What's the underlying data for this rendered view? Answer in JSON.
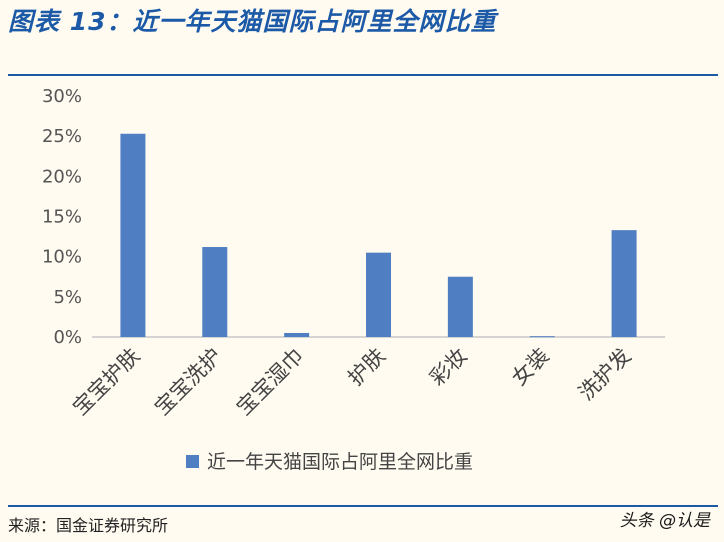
{
  "figure": {
    "title": "图表 13：近一年天猫国际占阿里全网比重",
    "source": "来源：国金证券研究所",
    "watermark": "头条 @认是"
  },
  "colors": {
    "bar": "#4f7ec2",
    "axis": "#c8c8c8",
    "rule": "#1c5aa8"
  },
  "chart_data": {
    "type": "bar",
    "categories": [
      "宝宝护肤",
      "宝宝洗护",
      "宝宝湿巾",
      "护肤",
      "彩妆",
      "女装",
      "洗护发"
    ],
    "series": [
      {
        "name": "近一年天猫国际占阿里全网比重",
        "values": [
          25.3,
          11.2,
          0.5,
          10.5,
          7.5,
          0.1,
          13.3
        ]
      }
    ],
    "ylim": [
      0,
      30
    ],
    "yticks": [
      0,
      5,
      10,
      15,
      20,
      25,
      30
    ],
    "ytick_labels": [
      "0%",
      "5%",
      "10%",
      "15%",
      "20%",
      "25%",
      "30%"
    ],
    "legend": "bottom",
    "grid": false
  }
}
